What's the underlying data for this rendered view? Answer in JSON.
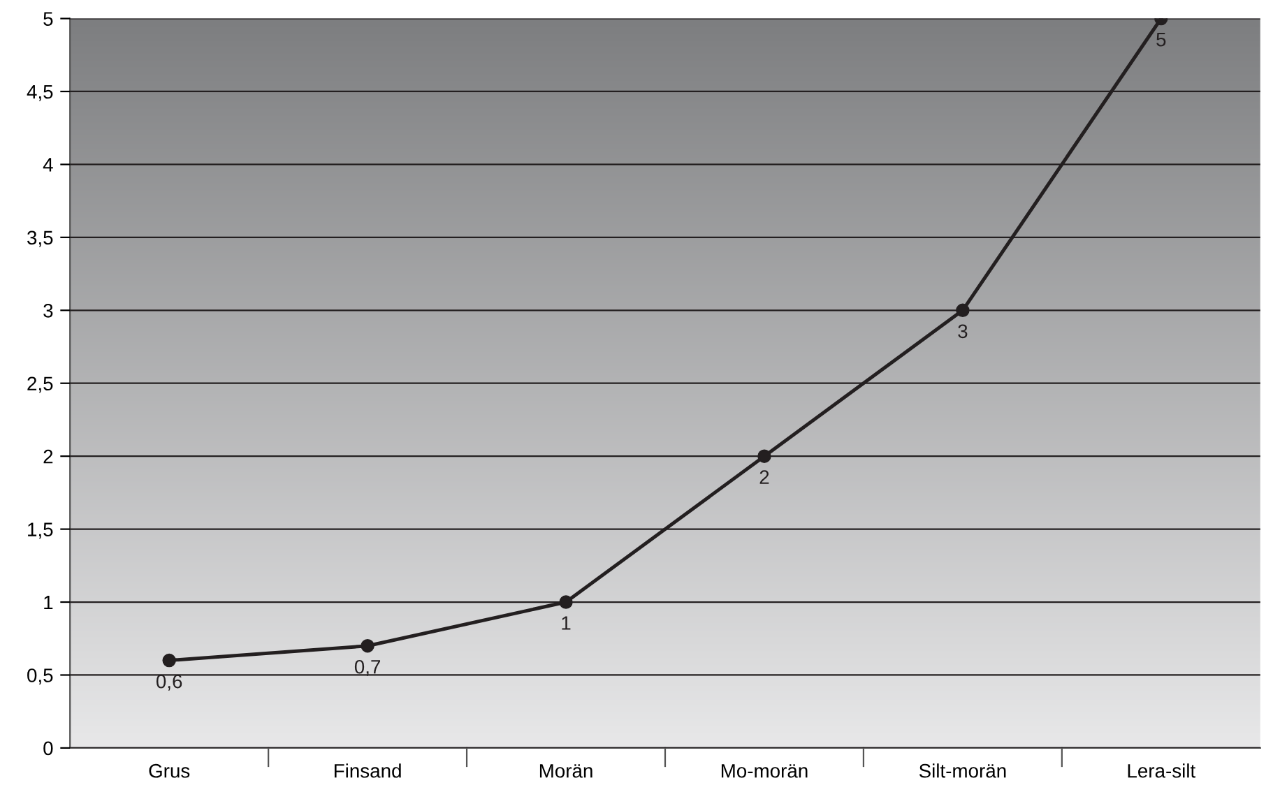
{
  "chart_data": {
    "type": "line",
    "categories": [
      "Grus",
      "Finsand",
      "Morän",
      "Mo-morän",
      "Silt-morän",
      "Lera-silt"
    ],
    "values": [
      0.6,
      0.7,
      1,
      2,
      3,
      5
    ],
    "value_labels": [
      "0,6",
      "0,7",
      "1",
      "2",
      "3",
      "5"
    ],
    "color": "#231f20",
    "marker": "circle",
    "line_style": "solid",
    "grid": "y",
    "legend": false,
    "ylim": [
      0,
      5
    ],
    "yticks": [
      0,
      {
        "value": 0.5,
        "label": "0,5"
      },
      1,
      {
        "value": 1.5,
        "label": "1,5"
      },
      2,
      {
        "value": 2.5,
        "label": "2,5"
      },
      3,
      {
        "value": 3.5,
        "label": "3,5"
      },
      4,
      {
        "value": 4.5,
        "label": "4,5"
      },
      5
    ]
  }
}
